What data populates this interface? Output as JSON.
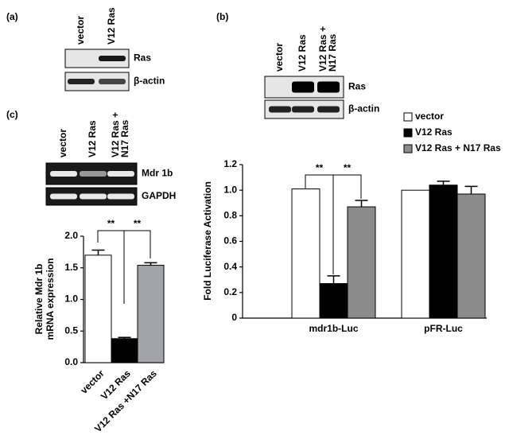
{
  "panels": {
    "a": {
      "label": "(a)",
      "lanes": [
        [
          "vector"
        ],
        [
          "V12 Ras"
        ]
      ],
      "rows": [
        "Ras",
        "β-actin"
      ]
    },
    "b": {
      "label": "(b)",
      "lanes": [
        [
          "vector"
        ],
        [
          "V12 Ras"
        ],
        [
          "V12 Ras +",
          "N17 Ras"
        ]
      ],
      "rows": [
        "Ras",
        "β-actin"
      ]
    },
    "c": {
      "label": "(c)",
      "lanes": [
        [
          "vector"
        ],
        [
          "V12 Ras"
        ],
        [
          "V12 Ras +",
          "N17 Ras"
        ]
      ],
      "rows": [
        "Mdr 1b",
        "GAPDH"
      ]
    }
  },
  "chart_data": [
    {
      "type": "bar",
      "ylabel": [
        "Relative Mdr 1b",
        "mRNA expression"
      ],
      "categories": [
        "vector",
        "V12 Ras",
        "V12 Ras +N17 Ras"
      ],
      "values": [
        1.7,
        0.38,
        1.54
      ],
      "errors": [
        0.08,
        0.02,
        0.04
      ],
      "colors": [
        "#ffffff",
        "#000000",
        "#a3a3ab"
      ],
      "ylim": [
        0,
        2.0
      ],
      "yticks": [
        {
          "value": 0,
          "label": "0.0"
        },
        0.5,
        {
          "value": 1,
          "label": "1.0"
        },
        1.5,
        {
          "value": 2,
          "label": "2.0"
        }
      ],
      "annotations": [
        "**",
        "**"
      ]
    },
    {
      "type": "grouped_bar",
      "ylabel": "Fold Luciferase Activation",
      "categories": [
        "mdr1b-Luc",
        "pFR-Luc"
      ],
      "series": [
        {
          "name": "vector",
          "color": "#ffffff",
          "values": [
            1.01,
            1.0
          ],
          "errors": [
            0,
            0
          ]
        },
        {
          "name": "V12 Ras",
          "color": "#000000",
          "values": [
            0.27,
            1.04
          ],
          "errors": [
            0.06,
            0.03
          ]
        },
        {
          "name": "V12 Ras + N17 Ras",
          "color": "#8c8c8c",
          "values": [
            0.87,
            0.97
          ],
          "errors": [
            0.05,
            0.06
          ]
        }
      ],
      "ylim": [
        0,
        1.2
      ],
      "yticks": [
        0,
        0.2,
        0.4,
        0.6,
        0.8,
        {
          "value": 1,
          "label": "1.0"
        },
        1.2
      ],
      "legend": "top-right",
      "annotations": [
        "**",
        "**"
      ]
    }
  ]
}
